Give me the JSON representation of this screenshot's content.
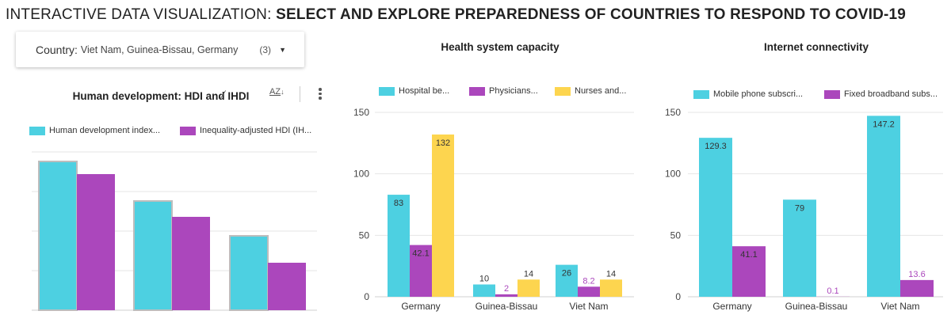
{
  "header": {
    "title_prefix": "INTERACTIVE DATA VISUALIZATION:",
    "title_bold": "SELECT AND EXPLORE PREPAREDNESS OF COUNTRIES TO RESPOND TO COVID-19"
  },
  "filter": {
    "label": "Country",
    "value": "Viet Nam, Guinea-Bissau, Germany",
    "count": "(3)",
    "caret_icon": "caret-down-icon"
  },
  "colors": {
    "cyan": "#4dd0e1",
    "purple": "#ab47bc",
    "yellow": "#fdd54f"
  },
  "chart_data": [
    {
      "type": "bar",
      "title": "Human development: HDI and IHDI",
      "toolbar": {
        "sort_label": "AZ",
        "sort_icon": "sort-az-icon",
        "menu_icon": "more-vert-icon"
      },
      "categories": [
        "",
        "",
        ""
      ],
      "series": [
        {
          "name": "Human development index...",
          "color": "#4dd0e1",
          "values": [
            0.94,
            0.69,
            0.47
          ]
        },
        {
          "name": "Inequality-adjusted HDI (IH...",
          "color": "#ab47bc",
          "values": [
            0.86,
            0.59,
            0.3
          ]
        }
      ],
      "ylim": [
        0,
        1
      ],
      "y_ticks": [],
      "grid": true,
      "legend": "top"
    },
    {
      "type": "bar",
      "title": "Health system capacity",
      "categories": [
        "Germany",
        "Guinea-Bissau",
        "Viet Nam"
      ],
      "series": [
        {
          "name": "Hospital be...",
          "color": "#4dd0e1",
          "values": [
            83,
            10,
            26
          ],
          "labels": [
            "83",
            "10",
            "26"
          ]
        },
        {
          "name": "Physicians...",
          "color": "#ab47bc",
          "values": [
            42.1,
            2,
            8.2
          ],
          "labels": [
            "42.1",
            "2",
            "8.2"
          ]
        },
        {
          "name": "Nurses and...",
          "color": "#fdd54f",
          "values": [
            132,
            14,
            14
          ],
          "labels": [
            "132",
            "14",
            "14"
          ]
        }
      ],
      "ylim": [
        0,
        150
      ],
      "y_ticks": [
        "0",
        "50",
        "100",
        "150"
      ],
      "grid": true,
      "legend": "top"
    },
    {
      "type": "bar",
      "title": "Internet connectivity",
      "categories": [
        "Germany",
        "Guinea-Bissau",
        "Viet Nam"
      ],
      "series": [
        {
          "name": "Mobile phone subscri...",
          "color": "#4dd0e1",
          "values": [
            129.3,
            79,
            147.2
          ],
          "labels": [
            "129.3",
            "79",
            "147.2"
          ]
        },
        {
          "name": "Fixed broadband subs...",
          "color": "#ab47bc",
          "values": [
            41.1,
            0.1,
            13.6
          ],
          "labels": [
            "41.1",
            "0.1",
            "13.6"
          ]
        }
      ],
      "ylim": [
        0,
        150
      ],
      "y_ticks": [
        "0",
        "50",
        "100",
        "150"
      ],
      "grid": true,
      "legend": "top"
    }
  ]
}
